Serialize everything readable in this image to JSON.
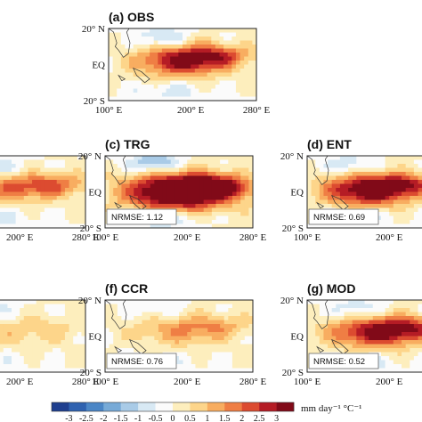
{
  "chart_data": {
    "type": "heatmap",
    "panels": [
      {
        "id": "a",
        "title": "(a) OBS",
        "nrmse": "",
        "hot": {
          "lon": 190,
          "lat": 2,
          "amp": 3.2,
          "sx": 38,
          "sy": 6
        },
        "cool": {
          "lon": 165,
          "lat": 15,
          "amp": 1.2
        }
      },
      {
        "id": "b",
        "title": "",
        "nrmse": "",
        "hot": {
          "lon": 200,
          "lat": 2,
          "amp": 2.0,
          "sx": 45,
          "sy": 5
        },
        "cool": {
          "lon": 170,
          "lat": 15,
          "amp": 0.8
        }
      },
      {
        "id": "c",
        "title": "(c) TRG",
        "nrmse": "NRMSE: 1.12",
        "hot": {
          "lon": 190,
          "lat": 0,
          "amp": 5.0,
          "sx": 45,
          "sy": 7
        },
        "cool": {
          "lon": 160,
          "lat": 16,
          "amp": 1.8
        }
      },
      {
        "id": "d",
        "title": "(d) ENT",
        "nrmse": "NRMSE: 0.69",
        "hot": {
          "lon": 175,
          "lat": 1,
          "amp": 3.8,
          "sx": 38,
          "sy": 6
        },
        "cool": {
          "lon": 150,
          "lat": 15,
          "amp": 1.0
        }
      },
      {
        "id": "e",
        "title": "",
        "nrmse": "",
        "hot": {
          "lon": 200,
          "lat": 2,
          "amp": 0.7,
          "sx": 45,
          "sy": 6
        },
        "cool": {
          "lon": 170,
          "lat": 15,
          "amp": 0.5
        }
      },
      {
        "id": "f",
        "title": "(f) CCR",
        "nrmse": "NRMSE: 0.76",
        "hot": {
          "lon": 195,
          "lat": 3,
          "amp": 1.4,
          "sx": 42,
          "sy": 6
        },
        "cool": {
          "lon": 165,
          "lat": 15,
          "amp": 0.6
        }
      },
      {
        "id": "g",
        "title": "(g) MOD",
        "nrmse": "NRMSE: 0.52",
        "hot": {
          "lon": 185,
          "lat": 2,
          "amp": 3.2,
          "sx": 40,
          "sy": 6
        },
        "cool": {
          "lon": 160,
          "lat": 15,
          "amp": 1.0
        }
      }
    ],
    "lat_ticks": [
      "20° N",
      "EQ",
      "20° S"
    ],
    "lon_ticks": [
      "100° E",
      "200° E",
      "280° E"
    ],
    "colorbar": {
      "ticks": [
        "-3",
        "-2.5",
        "-2",
        "-1.5",
        "-1",
        "-0.5",
        "0",
        "0.5",
        "1",
        "1.5",
        "2",
        "2.5",
        "3"
      ],
      "colors": [
        "#1f3f8f",
        "#2f62b0",
        "#4b86c6",
        "#77aad7",
        "#a9cbe7",
        "#d8e9f4",
        "#fbfbfb",
        "#fdeebd",
        "#fdd58a",
        "#f8ad60",
        "#ef7e44",
        "#dc4b30",
        "#b51c25",
        "#810a18"
      ],
      "unit": "mm day⁻¹ °C⁻¹"
    }
  }
}
